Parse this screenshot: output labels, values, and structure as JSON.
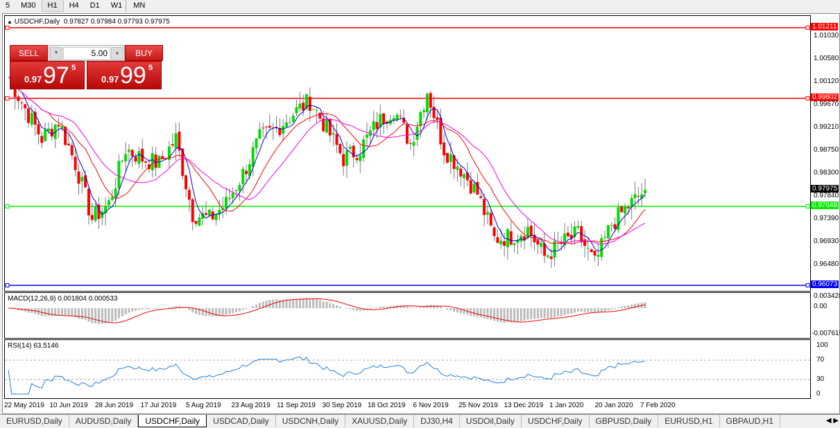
{
  "timeframes": [
    "5",
    "M30",
    "H1",
    "H4",
    "D1",
    "W1",
    "MN"
  ],
  "active_timeframe": "H1",
  "chart": {
    "symbol_title": "USDCHF,Daily",
    "ohlc": "0.97827 0.97984 0.97793 0.97975",
    "price_labels": [
      "1.01030",
      "1.00580",
      "1.00120",
      "0.99670",
      "0.99210",
      "0.98750",
      "0.98300",
      "0.97840",
      "0.97390",
      "0.96930",
      "0.96480"
    ],
    "current_price": "0.97975",
    "hlines": [
      {
        "value": "1.01211",
        "color": "#ff0000"
      },
      {
        "value": "0.99802",
        "color": "#ff0000"
      },
      {
        "value": "0.97648",
        "color": "#00ee00"
      },
      {
        "value": "0.96073",
        "color": "#0000ff"
      }
    ],
    "weekly_closes": [
      1.0023,
      0.996,
      0.99,
      0.9935,
      0.985,
      0.974,
      0.977,
      0.988,
      0.986,
      0.985,
      0.99,
      0.975,
      0.974,
      0.977,
      0.983,
      0.99,
      0.992,
      0.995,
      0.9975,
      0.992,
      0.986,
      0.988,
      0.993,
      0.996,
      0.989,
      0.9995,
      0.988,
      0.984,
      0.979,
      0.97,
      0.9705,
      0.972,
      0.9665,
      0.969,
      0.971,
      0.965,
      0.973,
      0.9765,
      0.97975
    ],
    "colors": {
      "up": "#00dd00",
      "down": "#ff0000",
      "ma_fast": "#0000cc",
      "ma_mid": "#ff0000",
      "ma_slow": "#ee00ee"
    }
  },
  "macd": {
    "title": "MACD(12,26,9) 0.001804 0.000533",
    "labels": [
      "0.003428",
      "0.00",
      "-0.007615"
    ]
  },
  "rsi": {
    "title": "RSI(14) 63.5146",
    "labels": [
      "100",
      "70",
      "30",
      "0"
    ],
    "color": "#1e7fe0"
  },
  "dates": [
    "22 May 2019",
    "10 Jun 2019",
    "28 Jun 2019",
    "17 Jul 2019",
    "5 Aug 2019",
    "23 Aug 2019",
    "11 Sep 2019",
    "30 Sep 2019",
    "18 Oct 2019",
    "6 Nov 2019",
    "25 Nov 2019",
    "13 Dec 2019",
    "1 Jan 2020",
    "20 Jan 2020",
    "7 Feb 2020"
  ],
  "trade": {
    "sell_label": "SELL",
    "buy_label": "BUY",
    "lot": "5.00",
    "sell_small": "0.97",
    "sell_big": "97",
    "sell_pip": "5",
    "buy_small": "0.97",
    "buy_big": "99",
    "buy_pip": "5"
  },
  "tabs": [
    "EURUSD,Daily",
    "AUDUSD,Daily",
    "USDCHF,Daily",
    "USDCAD,Daily",
    "USDCNH,Daily",
    "XAUUSD,Daily",
    "DJ30,H4",
    "USDOil,Daily",
    "USDCHF,Daily",
    "GBPUSD,Daily",
    "EURUSD,H1",
    "GBPAUD,H1"
  ],
  "active_tab": 2
}
